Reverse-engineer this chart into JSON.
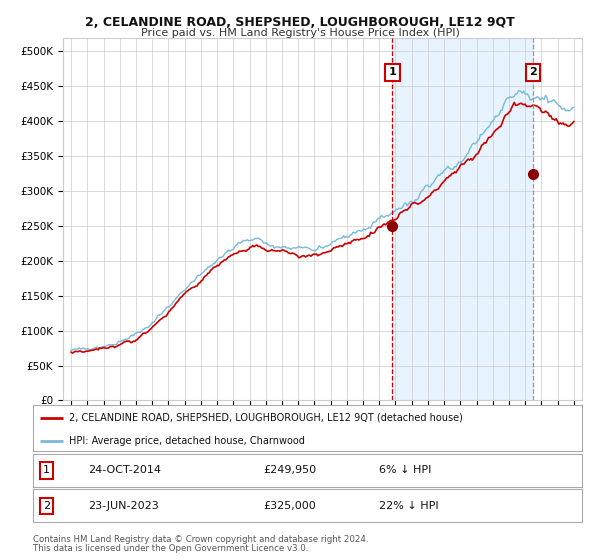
{
  "title": "2, CELANDINE ROAD, SHEPSHED, LOUGHBOROUGH, LE12 9QT",
  "subtitle": "Price paid vs. HM Land Registry's House Price Index (HPI)",
  "legend_line1": "2, CELANDINE ROAD, SHEPSHED, LOUGHBOROUGH, LE12 9QT (detached house)",
  "legend_line2": "HPI: Average price, detached house, Charnwood",
  "annotation1_label": "1",
  "annotation1_date": "24-OCT-2014",
  "annotation1_price": "£249,950",
  "annotation1_hpi": "6% ↓ HPI",
  "annotation2_label": "2",
  "annotation2_date": "23-JUN-2023",
  "annotation2_price": "£325,000",
  "annotation2_hpi": "22% ↓ HPI",
  "footnote1": "Contains HM Land Registry data © Crown copyright and database right 2024.",
  "footnote2": "This data is licensed under the Open Government Licence v3.0.",
  "hpi_color": "#7ab8d9",
  "price_color": "#cc0000",
  "marker_color": "#8b0000",
  "bg_color": "#ffffff",
  "grid_color": "#cccccc",
  "shade_color": "#ddeeff",
  "sale1_x": 2014.81,
  "sale1_y": 249950,
  "sale2_x": 2023.47,
  "sale2_y": 325000,
  "vline1_x": 2014.81,
  "vline2_x": 2023.47,
  "ylim_max": 520000,
  "xmin": 1994.5,
  "xmax": 2026.5,
  "yticks": [
    0,
    50000,
    100000,
    150000,
    200000,
    250000,
    300000,
    350000,
    400000,
    450000,
    500000
  ],
  "ylabels": [
    "£0",
    "£50K",
    "£100K",
    "£150K",
    "£200K",
    "£250K",
    "£300K",
    "£350K",
    "£400K",
    "£450K",
    "£500K"
  ]
}
